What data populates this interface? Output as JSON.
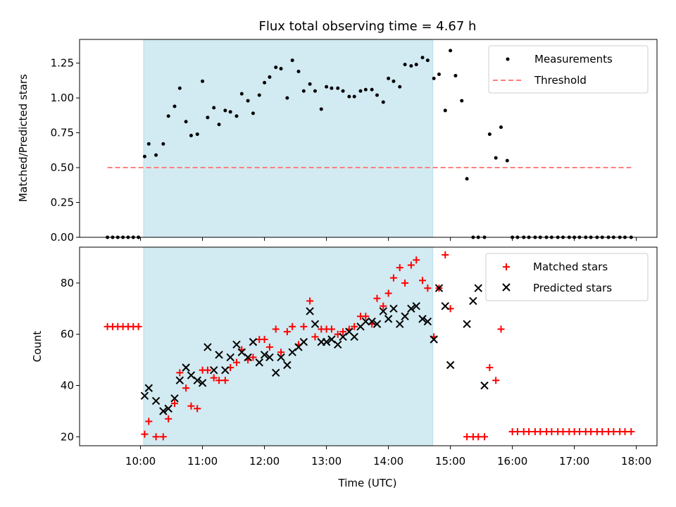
{
  "chart_data": [
    {
      "type": "scatter",
      "title": "Flux total observing time = 4.67 h",
      "xlabel": "",
      "ylabel": "Matched/Predicted stars",
      "ylim": [
        0,
        1.42
      ],
      "yticks": [
        "0.00",
        "0.25",
        "0.50",
        "0.75",
        "1.00",
        "1.25"
      ],
      "ytick_values": [
        0,
        0.25,
        0.5,
        0.75,
        1.0,
        1.25
      ],
      "legend_position": "top-right",
      "shaded_interval": {
        "start": "10:03",
        "end": "14:43",
        "color": "#add8e6"
      },
      "series": [
        {
          "name": "Measurements",
          "marker": "dot",
          "color": "#000000",
          "points": [
            [
              "09:28",
              0
            ],
            [
              "09:33",
              0
            ],
            [
              "09:38",
              0
            ],
            [
              "09:43",
              0
            ],
            [
              "09:48",
              0
            ],
            [
              "09:53",
              0
            ],
            [
              "09:58",
              0
            ],
            [
              "10:04",
              0.58
            ],
            [
              "10:08",
              0.67
            ],
            [
              "10:15",
              0.59
            ],
            [
              "10:22",
              0.67
            ],
            [
              "10:27",
              0.87
            ],
            [
              "10:33",
              0.94
            ],
            [
              "10:38",
              1.07
            ],
            [
              "10:44",
              0.83
            ],
            [
              "10:49",
              0.73
            ],
            [
              "10:55",
              0.74
            ],
            [
              "11:00",
              1.12
            ],
            [
              "11:05",
              0.86
            ],
            [
              "11:11",
              0.93
            ],
            [
              "11:16",
              0.81
            ],
            [
              "11:22",
              0.91
            ],
            [
              "11:27",
              0.9
            ],
            [
              "11:33",
              0.87
            ],
            [
              "11:38",
              1.03
            ],
            [
              "11:44",
              0.98
            ],
            [
              "11:49",
              0.89
            ],
            [
              "11:55",
              1.02
            ],
            [
              "12:00",
              1.11
            ],
            [
              "12:05",
              1.15
            ],
            [
              "12:11",
              1.22
            ],
            [
              "12:16",
              1.21
            ],
            [
              "12:22",
              1.0
            ],
            [
              "12:27",
              1.27
            ],
            [
              "12:33",
              1.19
            ],
            [
              "12:38",
              1.05
            ],
            [
              "12:44",
              1.1
            ],
            [
              "12:49",
              1.05
            ],
            [
              "12:55",
              0.92
            ],
            [
              "13:00",
              1.08
            ],
            [
              "13:05",
              1.07
            ],
            [
              "13:11",
              1.07
            ],
            [
              "13:16",
              1.05
            ],
            [
              "13:22",
              1.01
            ],
            [
              "13:27",
              1.01
            ],
            [
              "13:33",
              1.05
            ],
            [
              "13:38",
              1.06
            ],
            [
              "13:44",
              1.06
            ],
            [
              "13:49",
              1.02
            ],
            [
              "13:55",
              0.97
            ],
            [
              "14:00",
              1.14
            ],
            [
              "14:05",
              1.12
            ],
            [
              "14:11",
              1.08
            ],
            [
              "14:16",
              1.24
            ],
            [
              "14:22",
              1.23
            ],
            [
              "14:27",
              1.24
            ],
            [
              "14:33",
              1.29
            ],
            [
              "14:38",
              1.27
            ],
            [
              "14:44",
              1.14
            ],
            [
              "14:49",
              1.17
            ],
            [
              "14:55",
              0.91
            ],
            [
              "15:00",
              1.34
            ],
            [
              "15:05",
              1.16
            ],
            [
              "15:11",
              0.98
            ],
            [
              "15:16",
              0.42
            ],
            [
              "15:22",
              0
            ],
            [
              "15:27",
              0
            ],
            [
              "15:33",
              0
            ],
            [
              "15:38",
              0.74
            ],
            [
              "15:44",
              0.57
            ],
            [
              "15:49",
              0.79
            ],
            [
              "15:55",
              0.55
            ],
            [
              "16:00",
              0
            ],
            [
              "16:05",
              0
            ],
            [
              "16:11",
              0
            ],
            [
              "16:16",
              0
            ],
            [
              "16:22",
              0
            ],
            [
              "16:27",
              0
            ],
            [
              "16:33",
              0
            ],
            [
              "16:38",
              0
            ],
            [
              "16:44",
              0
            ],
            [
              "16:49",
              0
            ],
            [
              "16:55",
              0
            ],
            [
              "17:00",
              0
            ],
            [
              "17:05",
              0
            ],
            [
              "17:11",
              0
            ],
            [
              "17:16",
              0
            ],
            [
              "17:22",
              0
            ],
            [
              "17:27",
              0
            ],
            [
              "17:33",
              0
            ],
            [
              "17:38",
              0
            ],
            [
              "17:44",
              0
            ],
            [
              "17:49",
              0
            ],
            [
              "17:55",
              0
            ]
          ]
        },
        {
          "name": "Threshold",
          "marker": "dashed-line",
          "color": "#ff7f7f",
          "points": [
            [
              "09:28",
              0.5
            ],
            [
              "17:55",
              0.5
            ]
          ]
        }
      ]
    },
    {
      "type": "scatter",
      "xlabel": "Time (UTC)",
      "ylabel": "Count",
      "ylim": [
        16.5,
        94
      ],
      "yticks": [
        "20",
        "40",
        "60",
        "80"
      ],
      "ytick_values": [
        20,
        40,
        60,
        80
      ],
      "xticks": [
        "10:00",
        "11:00",
        "12:00",
        "13:00",
        "14:00",
        "15:00",
        "16:00",
        "17:00",
        "18:00"
      ],
      "xlim": [
        "09:01",
        "18:20"
      ],
      "legend_position": "top-right",
      "series": [
        {
          "name": "Matched stars",
          "marker": "plus",
          "color": "#ff0000",
          "points": [
            [
              "09:28",
              63
            ],
            [
              "09:33",
              63
            ],
            [
              "09:38",
              63
            ],
            [
              "09:43",
              63
            ],
            [
              "09:48",
              63
            ],
            [
              "09:53",
              63
            ],
            [
              "09:58",
              63
            ],
            [
              "10:04",
              21
            ],
            [
              "10:08",
              26
            ],
            [
              "10:15",
              20
            ],
            [
              "10:22",
              20
            ],
            [
              "10:27",
              27
            ],
            [
              "10:33",
              33
            ],
            [
              "10:38",
              45
            ],
            [
              "10:44",
              39
            ],
            [
              "10:49",
              32
            ],
            [
              "10:55",
              31
            ],
            [
              "11:00",
              46
            ],
            [
              "11:05",
              46
            ],
            [
              "11:11",
              43
            ],
            [
              "11:16",
              42
            ],
            [
              "11:22",
              42
            ],
            [
              "11:27",
              47
            ],
            [
              "11:33",
              49
            ],
            [
              "11:38",
              54
            ],
            [
              "11:44",
              50
            ],
            [
              "11:49",
              51
            ],
            [
              "11:55",
              58
            ],
            [
              "12:00",
              58
            ],
            [
              "12:05",
              55
            ],
            [
              "12:11",
              62
            ],
            [
              "12:16",
              53
            ],
            [
              "12:22",
              61
            ],
            [
              "12:27",
              63
            ],
            [
              "12:33",
              56
            ],
            [
              "12:38",
              63
            ],
            [
              "12:44",
              73
            ],
            [
              "12:49",
              59
            ],
            [
              "12:55",
              62
            ],
            [
              "13:00",
              62
            ],
            [
              "13:05",
              62
            ],
            [
              "13:11",
              60
            ],
            [
              "13:16",
              61
            ],
            [
              "13:22",
              62
            ],
            [
              "13:27",
              63
            ],
            [
              "13:33",
              67
            ],
            [
              "13:38",
              67
            ],
            [
              "13:44",
              64
            ],
            [
              "13:49",
              74
            ],
            [
              "13:55",
              71
            ],
            [
              "14:00",
              76
            ],
            [
              "14:05",
              82
            ],
            [
              "14:11",
              86
            ],
            [
              "14:16",
              80
            ],
            [
              "14:22",
              87
            ],
            [
              "14:27",
              89
            ],
            [
              "14:33",
              81
            ],
            [
              "14:38",
              78
            ],
            [
              "14:44",
              59
            ],
            [
              "14:49",
              78
            ],
            [
              "14:55",
              91
            ],
            [
              "15:00",
              70
            ],
            [
              "15:16",
              20
            ],
            [
              "15:22",
              20
            ],
            [
              "15:27",
              20
            ],
            [
              "15:33",
              20
            ],
            [
              "15:38",
              47
            ],
            [
              "15:44",
              42
            ],
            [
              "15:49",
              62
            ],
            [
              "16:00",
              22
            ],
            [
              "16:05",
              22
            ],
            [
              "16:11",
              22
            ],
            [
              "16:16",
              22
            ],
            [
              "16:22",
              22
            ],
            [
              "16:27",
              22
            ],
            [
              "16:33",
              22
            ],
            [
              "16:38",
              22
            ],
            [
              "16:44",
              22
            ],
            [
              "16:49",
              22
            ],
            [
              "16:55",
              22
            ],
            [
              "17:00",
              22
            ],
            [
              "17:05",
              22
            ],
            [
              "17:11",
              22
            ],
            [
              "17:16",
              22
            ],
            [
              "17:22",
              22
            ],
            [
              "17:27",
              22
            ],
            [
              "17:33",
              22
            ],
            [
              "17:38",
              22
            ],
            [
              "17:44",
              22
            ],
            [
              "17:49",
              22
            ],
            [
              "17:55",
              22
            ]
          ]
        },
        {
          "name": "Predicted stars",
          "marker": "x",
          "color": "#000000",
          "points": [
            [
              "10:04",
              36
            ],
            [
              "10:08",
              39
            ],
            [
              "10:15",
              34
            ],
            [
              "10:22",
              30
            ],
            [
              "10:27",
              31
            ],
            [
              "10:33",
              35
            ],
            [
              "10:38",
              42
            ],
            [
              "10:44",
              47
            ],
            [
              "10:49",
              44
            ],
            [
              "10:55",
              42
            ],
            [
              "11:00",
              41
            ],
            [
              "11:05",
              55
            ],
            [
              "11:11",
              46
            ],
            [
              "11:16",
              52
            ],
            [
              "11:22",
              46
            ],
            [
              "11:27",
              51
            ],
            [
              "11:33",
              56
            ],
            [
              "11:38",
              53
            ],
            [
              "11:44",
              51
            ],
            [
              "11:49",
              57
            ],
            [
              "11:55",
              49
            ],
            [
              "12:00",
              52
            ],
            [
              "12:05",
              51
            ],
            [
              "12:11",
              45
            ],
            [
              "12:16",
              51
            ],
            [
              "12:22",
              48
            ],
            [
              "12:27",
              53
            ],
            [
              "12:33",
              55
            ],
            [
              "12:38",
              57
            ],
            [
              "12:44",
              69
            ],
            [
              "12:49",
              64
            ],
            [
              "12:55",
              57
            ],
            [
              "13:00",
              57
            ],
            [
              "13:05",
              58
            ],
            [
              "13:11",
              56
            ],
            [
              "13:16",
              59
            ],
            [
              "13:22",
              61
            ],
            [
              "13:27",
              59
            ],
            [
              "13:33",
              63
            ],
            [
              "13:38",
              65
            ],
            [
              "13:44",
              65
            ],
            [
              "13:49",
              64
            ],
            [
              "13:55",
              69
            ],
            [
              "14:00",
              66
            ],
            [
              "14:05",
              70
            ],
            [
              "14:11",
              64
            ],
            [
              "14:16",
              67
            ],
            [
              "14:22",
              70
            ],
            [
              "14:27",
              71
            ],
            [
              "14:33",
              66
            ],
            [
              "14:38",
              65
            ],
            [
              "14:44",
              58
            ],
            [
              "14:49",
              78
            ],
            [
              "14:55",
              71
            ],
            [
              "15:00",
              48
            ],
            [
              "15:16",
              64
            ],
            [
              "15:22",
              73
            ],
            [
              "15:27",
              78
            ],
            [
              "15:33",
              40
            ]
          ]
        }
      ]
    }
  ]
}
